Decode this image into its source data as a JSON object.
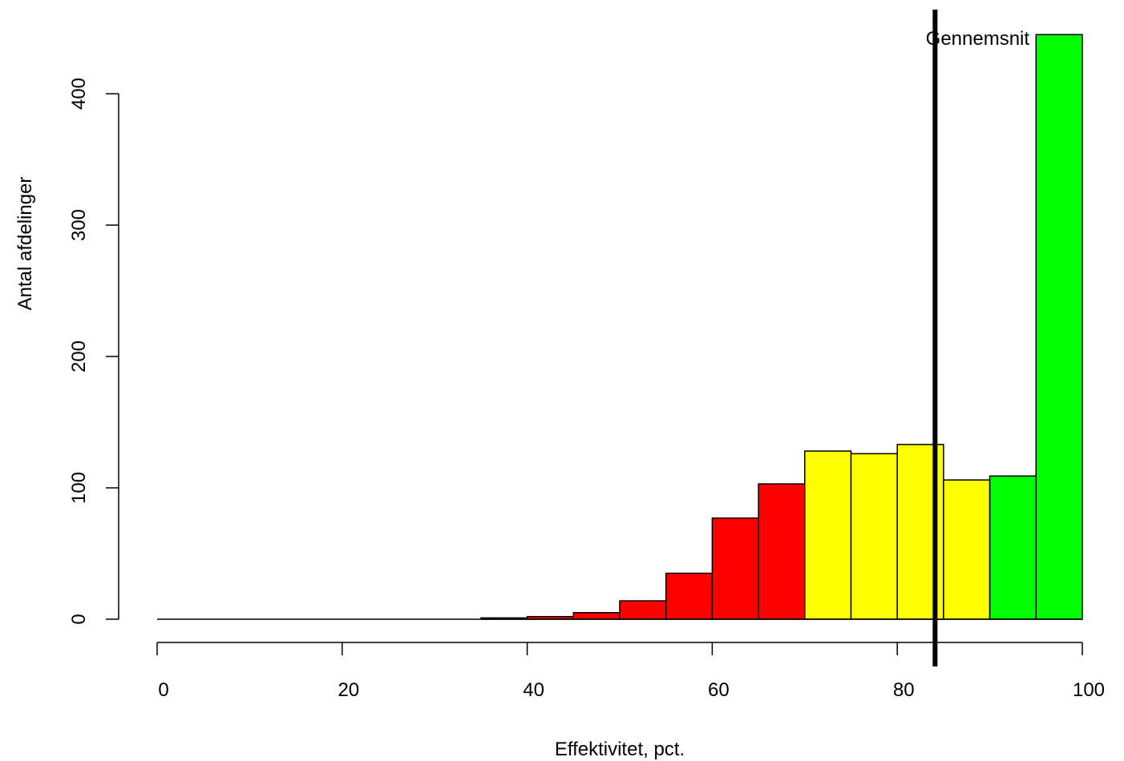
{
  "chart_data": {
    "type": "bar",
    "xlabel": "Effektivitet, pct.",
    "ylabel": "Antal afdelinger",
    "xlim": [
      0,
      100
    ],
    "ylim": [
      0,
      400
    ],
    "x_ticks": [
      "0",
      "20",
      "40",
      "60",
      "80",
      "100"
    ],
    "y_ticks": [
      "0",
      "100",
      "200",
      "300",
      "400"
    ],
    "bin_width": 5,
    "bins": [
      {
        "x0": 0,
        "x1": 5,
        "value": 0,
        "color": "#ff0000"
      },
      {
        "x0": 5,
        "x1": 10,
        "value": 0,
        "color": "#ff0000"
      },
      {
        "x0": 10,
        "x1": 15,
        "value": 0,
        "color": "#ff0000"
      },
      {
        "x0": 15,
        "x1": 20,
        "value": 0,
        "color": "#ff0000"
      },
      {
        "x0": 20,
        "x1": 25,
        "value": 0,
        "color": "#ff0000"
      },
      {
        "x0": 25,
        "x1": 30,
        "value": 0,
        "color": "#ff0000"
      },
      {
        "x0": 30,
        "x1": 35,
        "value": 0,
        "color": "#ff0000"
      },
      {
        "x0": 35,
        "x1": 40,
        "value": 1,
        "color": "#ff0000"
      },
      {
        "x0": 40,
        "x1": 45,
        "value": 2,
        "color": "#ff0000"
      },
      {
        "x0": 45,
        "x1": 50,
        "value": 5,
        "color": "#ff0000"
      },
      {
        "x0": 50,
        "x1": 55,
        "value": 14,
        "color": "#ff0000"
      },
      {
        "x0": 55,
        "x1": 60,
        "value": 35,
        "color": "#ff0000"
      },
      {
        "x0": 60,
        "x1": 65,
        "value": 77,
        "color": "#ff0000"
      },
      {
        "x0": 65,
        "x1": 70,
        "value": 103,
        "color": "#ff0000"
      },
      {
        "x0": 70,
        "x1": 75,
        "value": 128,
        "color": "#ffff00"
      },
      {
        "x0": 75,
        "x1": 80,
        "value": 126,
        "color": "#ffff00"
      },
      {
        "x0": 80,
        "x1": 85,
        "value": 133,
        "color": "#ffff00"
      },
      {
        "x0": 85,
        "x1": 90,
        "value": 106,
        "color": "#ffff00"
      },
      {
        "x0": 90,
        "x1": 95,
        "value": 109,
        "color": "#00ff00"
      },
      {
        "x0": 95,
        "x1": 100,
        "value": 445,
        "color": "#00ff00"
      }
    ],
    "reference_line": {
      "x": 84,
      "label": "Gennemsnit",
      "color": "#000000"
    },
    "grid": false,
    "legend": "none"
  }
}
